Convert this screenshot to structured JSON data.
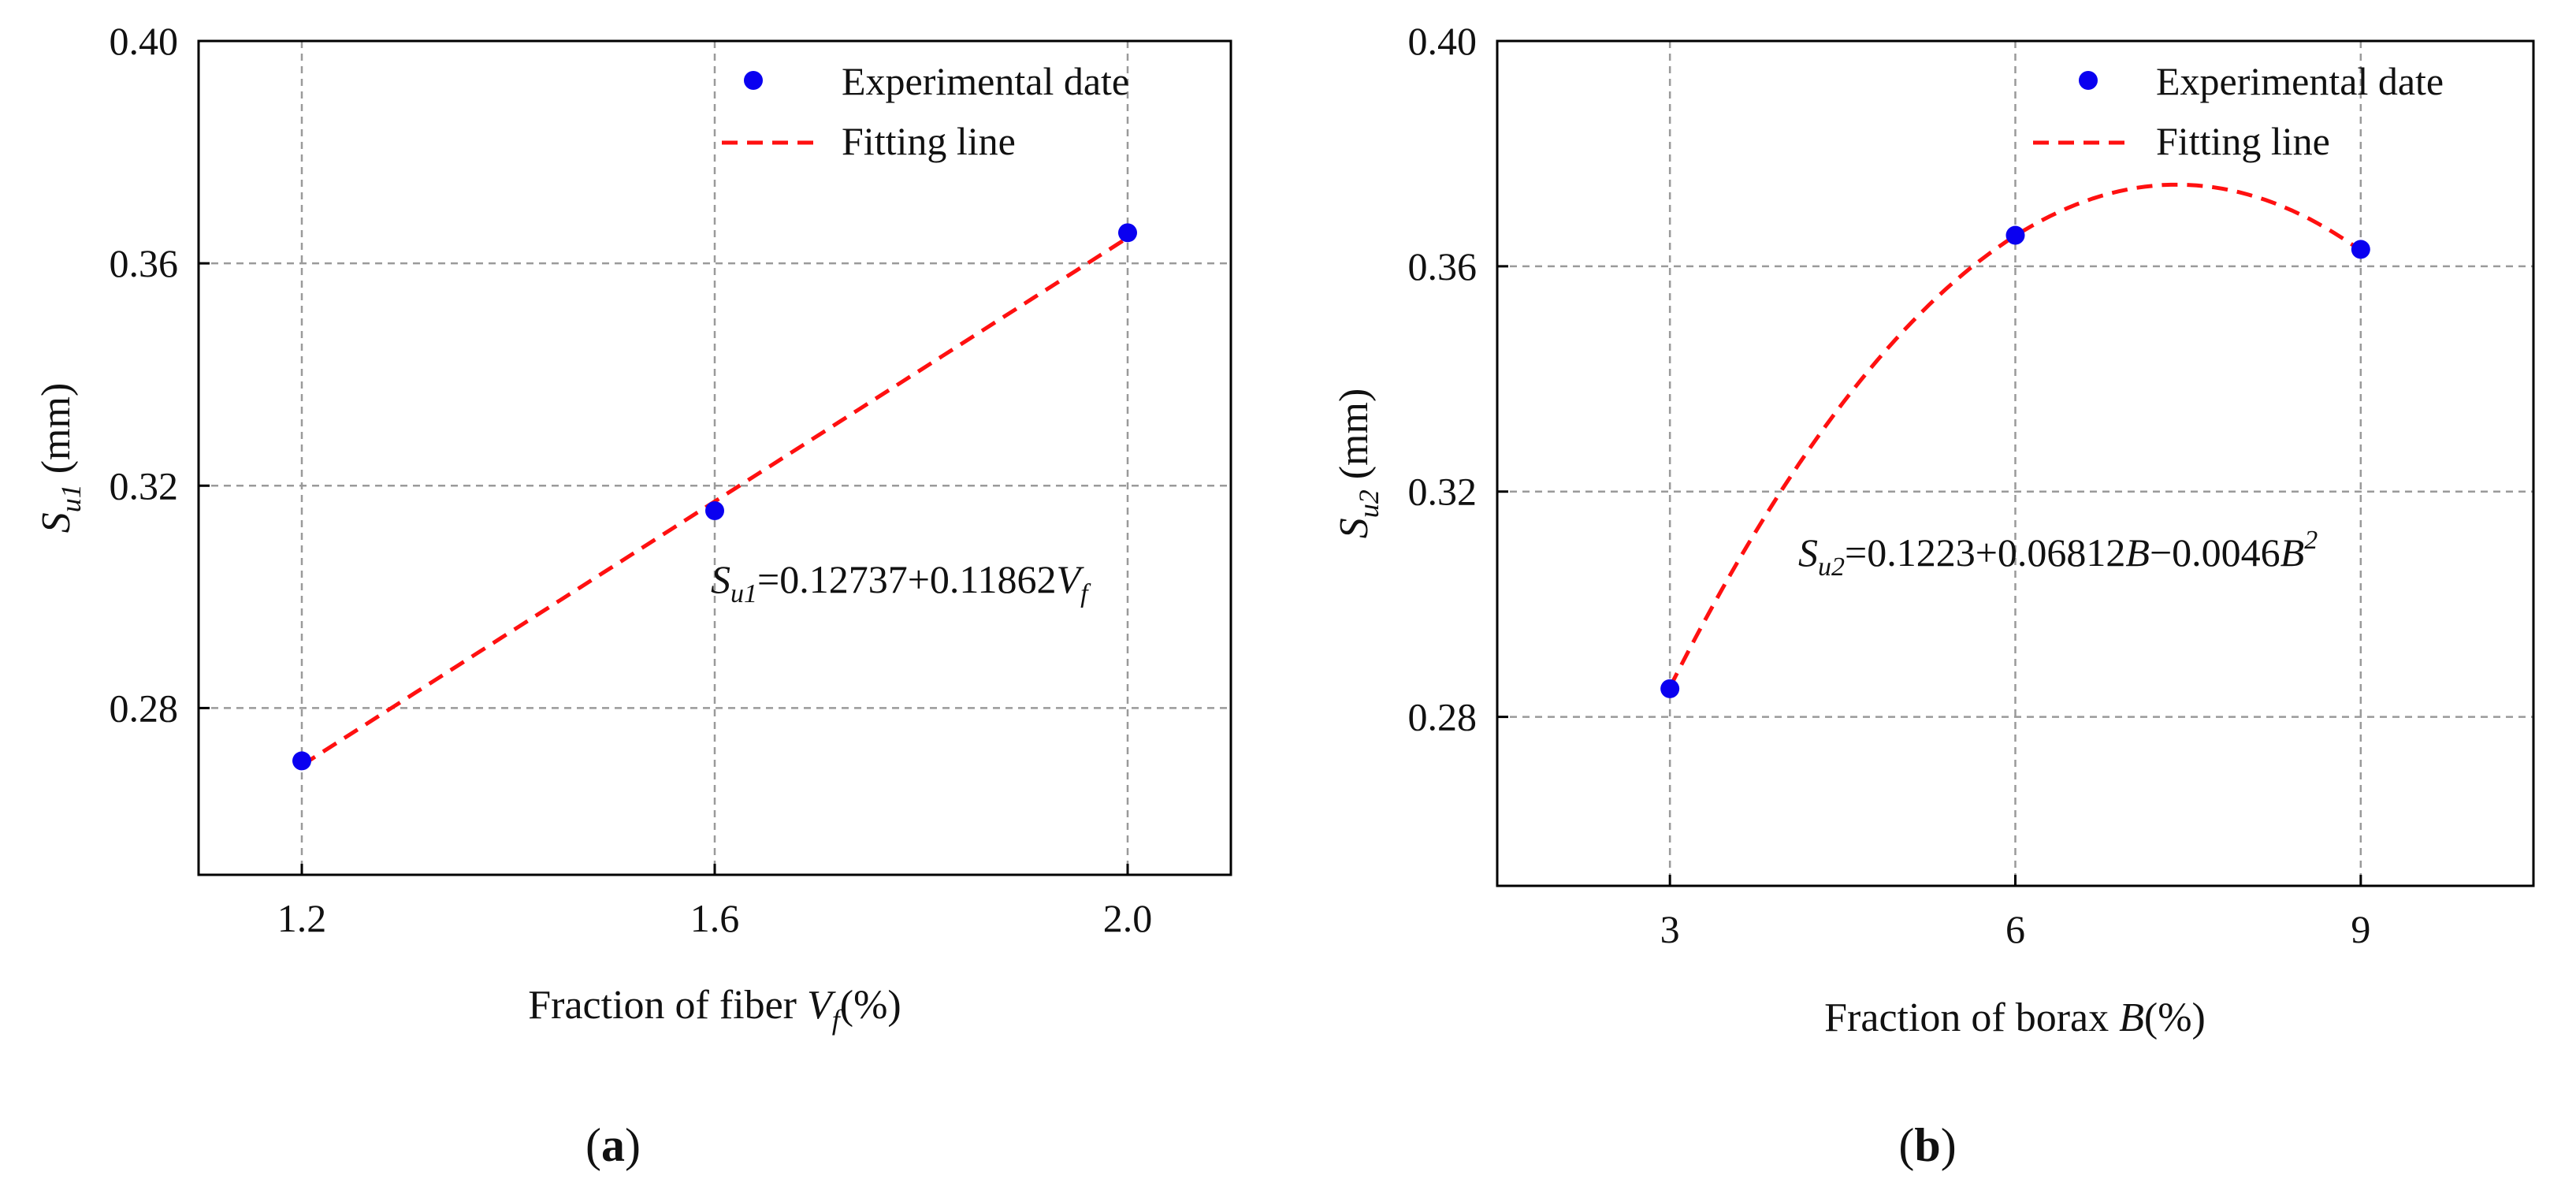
{
  "colors": {
    "points": "#0a00f0",
    "fit": "#ff1010",
    "grid": "#9a9a9a",
    "axis": "#000000"
  },
  "chart_data": [
    {
      "panel": "a",
      "panel_label": "a",
      "type": "scatter",
      "title": "",
      "xlabel": {
        "prefix": "Fraction of fiber ",
        "var": "V",
        "sub": "f",
        "suffix": "(%)"
      },
      "ylabel": {
        "var": "S",
        "sub": "u1",
        "suffix": " (mm)"
      },
      "xlim": [
        1.1,
        2.1
      ],
      "ylim": [
        0.25,
        0.4
      ],
      "xticks": [
        1.2,
        1.6,
        2.0
      ],
      "xtick_labels": [
        "1.2",
        "1.6",
        "2.0"
      ],
      "yticks": [
        0.28,
        0.32,
        0.36,
        0.4
      ],
      "ytick_labels": [
        "0.28",
        "0.32",
        "0.36",
        "0.40"
      ],
      "grid": true,
      "legend": {
        "position": "top-right",
        "points_label": "Experimental date",
        "fit_label": "Fitting line"
      },
      "series": [
        {
          "name": "Experimental date",
          "kind": "points",
          "x": [
            1.2,
            1.6,
            2.0
          ],
          "y": [
            0.2705,
            0.3155,
            0.3655
          ]
        },
        {
          "name": "Fitting line",
          "kind": "fit",
          "model": "linear",
          "coeffs": [
            0.12737,
            0.11862
          ],
          "x_range": [
            1.2,
            2.0
          ]
        }
      ],
      "equation": {
        "lhs_var": "S",
        "lhs_sub": "u1",
        "rhs": "=0.12737+0.11862",
        "rhs_var": "V",
        "rhs_sub": "f"
      }
    },
    {
      "panel": "b",
      "panel_label": "b",
      "type": "scatter",
      "title": "",
      "xlabel": {
        "prefix": "Fraction of borax ",
        "var": "B",
        "suffix": "(%)"
      },
      "ylabel": {
        "var": "S",
        "sub": "u2",
        "suffix": " (mm)"
      },
      "xlim": [
        1.5,
        10.5
      ],
      "ylim": [
        0.25,
        0.4
      ],
      "xticks": [
        3,
        6,
        9
      ],
      "xtick_labels": [
        "3",
        "6",
        "9"
      ],
      "yticks": [
        0.28,
        0.32,
        0.36,
        0.4
      ],
      "ytick_labels": [
        "0.28",
        "0.32",
        "0.36",
        "0.40"
      ],
      "grid": true,
      "legend": {
        "position": "top-right",
        "points_label": "Experimental date",
        "fit_label": "Fitting line"
      },
      "series": [
        {
          "name": "Experimental date",
          "kind": "points",
          "x": [
            3,
            6,
            9
          ],
          "y": [
            0.285,
            0.3655,
            0.363
          ]
        },
        {
          "name": "Fitting line",
          "kind": "fit",
          "model": "quadratic",
          "coeffs": [
            0.1223,
            0.06812,
            -0.0046
          ],
          "x_range": [
            3,
            9
          ]
        }
      ],
      "equation": {
        "lhs_var": "S",
        "lhs_sub": "u2",
        "rhs": "=0.1223+0.06812",
        "rhs_var": "B",
        "rhs_mid": "−0.0046",
        "rhs_var2": "B",
        "rhs_sup": "2"
      }
    }
  ]
}
